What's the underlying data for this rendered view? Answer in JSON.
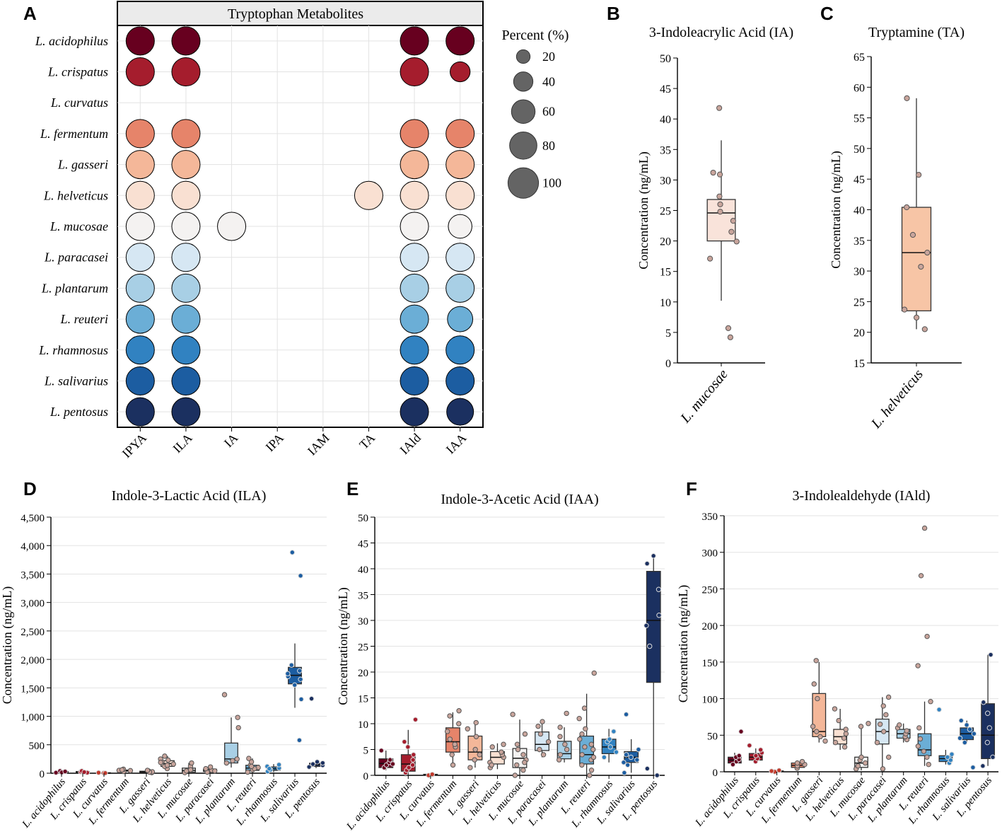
{
  "panel_labels": {
    "a": "A",
    "b": "B",
    "c": "C",
    "d": "D",
    "e": "E",
    "f": "F"
  },
  "chart_data": [
    {
      "panel": "A",
      "type": "scatter",
      "subtype": "bubble-matrix",
      "title": "Tryptophan Metabolites",
      "species": [
        "L. acidophilus",
        "L. crispatus",
        "L. curvatus",
        "L. fermentum",
        "L. gasseri",
        "L. helveticus",
        "L. mucosae",
        "L. paracasei",
        "L. plantarum",
        "L. reuteri",
        "L. rhamnosus",
        "L. salivarius",
        "L. pentosus"
      ],
      "metabolites": [
        "IPYA",
        "ILA",
        "IA",
        "IPA",
        "IAM",
        "TA",
        "IAld",
        "IAA"
      ],
      "species_colors": [
        "#67001f",
        "#a51d2d",
        "#c0392b",
        "#e6846a",
        "#f4b799",
        "#f9e0d2",
        "#f4f2f1",
        "#d6e7f3",
        "#a8cfe5",
        "#6baed6",
        "#3182c1",
        "#1c5da1",
        "#1b3060"
      ],
      "percent": [
        [
          100,
          100,
          null,
          null,
          null,
          null,
          100,
          100
        ],
        [
          100,
          100,
          null,
          null,
          null,
          null,
          100,
          50
        ],
        [
          null,
          null,
          null,
          null,
          null,
          null,
          null,
          null
        ],
        [
          100,
          100,
          null,
          null,
          null,
          null,
          100,
          100
        ],
        [
          100,
          100,
          null,
          null,
          null,
          null,
          100,
          100
        ],
        [
          100,
          100,
          null,
          null,
          null,
          100,
          100,
          100
        ],
        [
          100,
          100,
          100,
          null,
          null,
          null,
          100,
          70
        ],
        [
          100,
          100,
          null,
          null,
          null,
          null,
          100,
          100
        ],
        [
          100,
          100,
          null,
          null,
          null,
          null,
          100,
          100
        ],
        [
          100,
          100,
          null,
          null,
          null,
          null,
          100,
          80
        ],
        [
          100,
          100,
          null,
          null,
          null,
          null,
          100,
          100
        ],
        [
          100,
          100,
          null,
          null,
          null,
          null,
          100,
          100
        ],
        [
          100,
          100,
          null,
          null,
          null,
          null,
          100,
          90
        ]
      ],
      "legend": {
        "title": "Percent (%)",
        "values": [
          20,
          40,
          60,
          80,
          100
        ],
        "labels": [
          "20",
          "40",
          "60",
          "80",
          "100"
        ]
      }
    },
    {
      "panel": "B",
      "type": "box",
      "title": "3-Indoleacrylic Acid (IA)",
      "ylabel": "Concentration (ng/mL)",
      "ylim": [
        0,
        50
      ],
      "yticks": [
        0,
        5,
        10,
        15,
        20,
        25,
        30,
        35,
        40,
        45,
        50
      ],
      "ytick_labels": [
        "0",
        "5",
        "10",
        "15",
        "20",
        "25",
        "30",
        "35",
        "40",
        "45",
        "50"
      ],
      "categories": [
        "L. mucosae"
      ],
      "colors": [
        "#f9e3da"
      ],
      "boxes": [
        {
          "min": 10.2,
          "q1": 20.0,
          "median": 24.6,
          "q3": 26.8,
          "max": 36.5
        }
      ],
      "points": [
        [
          41.8,
          31.2,
          30.9,
          27.3,
          26.0,
          24.8,
          23.3,
          21.5,
          19.9,
          17.1,
          5.7,
          4.2
        ]
      ]
    },
    {
      "panel": "C",
      "type": "box",
      "title": "Tryptamine (TA)",
      "ylabel": "Concentration (ng/mL)",
      "ylim": [
        15,
        65
      ],
      "yticks": [
        15,
        20,
        25,
        30,
        35,
        40,
        45,
        50,
        55,
        60,
        65
      ],
      "ytick_labels": [
        "15",
        "20",
        "25",
        "30",
        "35",
        "40",
        "45",
        "50",
        "55",
        "60",
        "65"
      ],
      "categories": [
        "L. helveticus"
      ],
      "colors": [
        "#f7c5a6"
      ],
      "boxes": [
        {
          "min": 20.5,
          "q1": 23.5,
          "median": 33.0,
          "q3": 40.4,
          "max": 58.2
        }
      ],
      "points": [
        [
          58.2,
          45.7,
          40.4,
          35.9,
          33.0,
          30.7,
          23.7,
          22.4,
          20.5
        ]
      ]
    },
    {
      "panel": "D",
      "type": "box",
      "title": "Indole-3-Lactic Acid (ILA)",
      "ylabel": "Concentration (ng/mL)",
      "ylim": [
        0,
        4500
      ],
      "yticks": [
        0,
        500,
        1000,
        1500,
        2000,
        2500,
        3000,
        3500,
        4000,
        4500
      ],
      "ytick_labels": [
        "0",
        "500",
        "1,000",
        "1,500",
        "2,000",
        "2,500",
        "3,000",
        "3,500",
        "4,000",
        "4,500"
      ],
      "categories": [
        "L. acidophilus",
        "L. crispatus",
        "L. curvatus",
        "L. fermentum",
        "L. gasseri",
        "L. helveticus",
        "L. mucosae",
        "L. paracasei",
        "L. plantarum",
        "L. reuteri",
        "L. rhamnosus",
        "L. salivarius",
        "L. pentosus"
      ],
      "colors": [
        "#67001f",
        "#a51d2d",
        "#c0392b",
        "#e6846a",
        "#f4b799",
        "#f9e0d2",
        "#f4f2f1",
        "#d6e7f3",
        "#a8cfe5",
        "#6baed6",
        "#3182c1",
        "#1c5da1",
        "#1b3060"
      ],
      "boxes": [
        {
          "min": 5,
          "q1": 15,
          "median": 22,
          "q3": 30,
          "max": 40
        },
        {
          "min": 5,
          "q1": 15,
          "median": 22,
          "q3": 30,
          "max": 40
        },
        {
          "min": 0,
          "q1": 2,
          "median": 5,
          "q3": 8,
          "max": 12
        },
        {
          "min": 20,
          "q1": 35,
          "median": 45,
          "q3": 55,
          "max": 70
        },
        {
          "min": 5,
          "q1": 15,
          "median": 25,
          "q3": 35,
          "max": 50
        },
        {
          "min": 60,
          "q1": 120,
          "median": 170,
          "q3": 220,
          "max": 300
        },
        {
          "min": 0,
          "q1": 20,
          "median": 50,
          "q3": 90,
          "max": 180
        },
        {
          "min": 10,
          "q1": 30,
          "median": 50,
          "q3": 70,
          "max": 120
        },
        {
          "min": 100,
          "q1": 180,
          "median": 250,
          "q3": 530,
          "max": 980
        },
        {
          "min": 0,
          "q1": 50,
          "median": 90,
          "q3": 140,
          "max": 260
        },
        {
          "min": 20,
          "q1": 50,
          "median": 80,
          "q3": 110,
          "max": 160
        },
        {
          "min": 1150,
          "q1": 1570,
          "median": 1720,
          "q3": 1860,
          "max": 2280
        },
        {
          "min": 90,
          "q1": 120,
          "median": 150,
          "q3": 175,
          "max": 200
        }
      ],
      "points": [
        [
          10,
          25,
          40,
          15,
          30
        ],
        [
          10,
          25,
          40,
          20
        ],
        [
          0,
          5,
          10,
          3
        ],
        [
          30,
          50,
          70,
          45,
          60
        ],
        [
          10,
          25,
          40,
          20,
          50
        ],
        [
          80,
          120,
          160,
          200,
          250,
          300,
          140,
          190,
          230
        ],
        [
          10,
          40,
          80,
          120,
          180,
          60
        ],
        [
          20,
          50,
          80,
          110,
          40
        ],
        [
          180,
          220,
          250,
          800,
          980,
          1380
        ],
        [
          20,
          60,
          100,
          140,
          200,
          260,
          80,
          120
        ],
        [
          30,
          60,
          90,
          120,
          150,
          80
        ],
        [
          580,
          1300,
          1550,
          1650,
          1700,
          1750,
          1800,
          1900,
          3470,
          3880
        ],
        [
          110,
          140,
          160,
          180,
          200,
          1310
        ]
      ]
    },
    {
      "panel": "E",
      "type": "box",
      "title": "Indole-3-Acetic Acid (IAA)",
      "ylabel": "Concentration (ng/mL)",
      "ylim": [
        0,
        50
      ],
      "yticks": [
        0,
        5,
        10,
        15,
        20,
        25,
        30,
        35,
        40,
        45,
        50
      ],
      "ytick_labels": [
        "0",
        "5",
        "10",
        "15",
        "20",
        "25",
        "30",
        "35",
        "40",
        "45",
        "50"
      ],
      "categories": [
        "L. acidophilus",
        "L. crispatus",
        "L. curvatus",
        "L. fermentum",
        "L. gasseri",
        "L. helveticus",
        "L. mucosae",
        "L. paracasei",
        "L. plantarum",
        "L. reuteri",
        "L. rhamnosus",
        "L. salivarius",
        "L. pentosus"
      ],
      "colors": [
        "#67001f",
        "#a51d2d",
        "#c0392b",
        "#e6846a",
        "#f4b799",
        "#f9e0d2",
        "#f4f2f1",
        "#d6e7f3",
        "#a8cfe5",
        "#6baed6",
        "#3182c1",
        "#1c5da1",
        "#1b3060"
      ],
      "boxes": [
        {
          "min": 1,
          "q1": 1.5,
          "median": 2.3,
          "q3": 3.2,
          "max": 4.8
        },
        {
          "min": 0,
          "q1": 0.8,
          "median": 2.2,
          "q3": 4.0,
          "max": 8.8
        },
        {
          "min": 0,
          "q1": 0,
          "median": 0.1,
          "q3": 0.2,
          "max": 0.3
        },
        {
          "min": 2,
          "q1": 4.5,
          "median": 6.5,
          "q3": 9.2,
          "max": 12.2
        },
        {
          "min": 1.5,
          "q1": 3.0,
          "median": 4.5,
          "q3": 7.6,
          "max": 10.2
        },
        {
          "min": 1.2,
          "q1": 2.2,
          "median": 3.5,
          "q3": 4.6,
          "max": 6.2
        },
        {
          "min": 0,
          "q1": 1.5,
          "median": 3.3,
          "q3": 5.2,
          "max": 10.8
        },
        {
          "min": 3.5,
          "q1": 4.8,
          "median": 6.0,
          "q3": 8.4,
          "max": 10.4
        },
        {
          "min": 2.5,
          "q1": 3.2,
          "median": 4.2,
          "q3": 6.6,
          "max": 9.3
        },
        {
          "min": 0,
          "q1": 2.2,
          "median": 4.0,
          "q3": 7.6,
          "max": 15.8
        },
        {
          "min": 2.5,
          "q1": 4.2,
          "median": 5.5,
          "q3": 7.0,
          "max": 9.0
        },
        {
          "min": 0.5,
          "q1": 2.5,
          "median": 3.5,
          "q3": 4.6,
          "max": 7.0
        },
        {
          "min": 0,
          "q1": 18.0,
          "median": 30.0,
          "q3": 39.5,
          "max": 42.2
        }
      ],
      "points": [
        [
          1.5,
          2.0,
          2.5,
          3.0,
          4.8,
          2.2
        ],
        [
          0.5,
          1.0,
          2.0,
          3.0,
          4.0,
          5.5,
          6.5,
          10.8,
          1.5
        ],
        [
          0,
          0.1,
          0.2
        ],
        [
          2.0,
          4.0,
          5.5,
          7.0,
          8.5,
          10.0,
          11.5,
          12.5,
          6.0
        ],
        [
          1.5,
          3.0,
          4.0,
          5.0,
          7.5,
          9.0,
          10.2
        ],
        [
          1.5,
          2.5,
          3.5,
          4.0,
          4.5,
          5.5,
          6.0,
          2.0
        ],
        [
          0,
          1.0,
          2.0,
          3.0,
          4.0,
          5.0,
          6.0,
          8.0,
          11.8,
          2.5
        ],
        [
          4.0,
          5.0,
          6.5,
          8.0,
          9.5,
          10.4
        ],
        [
          3.0,
          4.0,
          5.0,
          6.0,
          7.5,
          9.3,
          12.0
        ],
        [
          0,
          1.0,
          2.0,
          3.0,
          4.0,
          5.0,
          6.0,
          7.0,
          8.0,
          9.0,
          11.0,
          13.0,
          19.8,
          3.5,
          5.5
        ],
        [
          3.5,
          4.5,
          5.5,
          6.5,
          7.0,
          8.5
        ],
        [
          0.5,
          2.0,
          3.0,
          3.5,
          4.0,
          5.0,
          11.8,
          2.5
        ],
        [
          0,
          1.3,
          25.0,
          29.0,
          31.0,
          36.0,
          41.0,
          42.5
        ]
      ]
    },
    {
      "panel": "F",
      "type": "box",
      "title": "3-Indolealdehyde (IAld)",
      "ylabel": "Concentration (ng/mL)",
      "ylim": [
        0,
        350
      ],
      "yticks": [
        0,
        50,
        100,
        150,
        200,
        250,
        300,
        350
      ],
      "ytick_labels": [
        "0",
        "50",
        "100",
        "150",
        "200",
        "250",
        "300",
        "350"
      ],
      "categories": [
        "L. acidophilus",
        "L. crispatus",
        "L. curvatus",
        "L. fermentum",
        "L. gasseri",
        "L. helveticus",
        "L. mucosae",
        "L. paracasei",
        "L. plantarum",
        "L. reuteri",
        "L. rhamnosus",
        "L. salivarius",
        "L. pentosus"
      ],
      "colors": [
        "#67001f",
        "#a51d2d",
        "#c0392b",
        "#e6846a",
        "#f4b799",
        "#f9e0d2",
        "#f4f2f1",
        "#d6e7f3",
        "#a8cfe5",
        "#6baed6",
        "#3182c1",
        "#1c5da1",
        "#1b3060"
      ],
      "boxes": [
        {
          "min": 8,
          "q1": 12,
          "median": 16,
          "q3": 20,
          "max": 26
        },
        {
          "min": 12,
          "q1": 16,
          "median": 20,
          "q3": 25,
          "max": 32
        },
        {
          "min": 0,
          "q1": 0,
          "median": 1,
          "q3": 1,
          "max": 2
        },
        {
          "min": 3,
          "q1": 6,
          "median": 9,
          "q3": 12,
          "max": 15
        },
        {
          "min": 40,
          "q1": 48,
          "median": 55,
          "q3": 107,
          "max": 150
        },
        {
          "min": 30,
          "q1": 38,
          "median": 48,
          "q3": 58,
          "max": 86
        },
        {
          "min": 2,
          "q1": 6,
          "median": 12,
          "q3": 20,
          "max": 65
        },
        {
          "min": 3,
          "q1": 38,
          "median": 55,
          "q3": 72,
          "max": 102
        },
        {
          "min": 40,
          "q1": 46,
          "median": 52,
          "q3": 58,
          "max": 66
        },
        {
          "min": 8,
          "q1": 22,
          "median": 30,
          "q3": 52,
          "max": 96
        },
        {
          "min": 10,
          "q1": 14,
          "median": 18,
          "q3": 22,
          "max": 30
        },
        {
          "min": 40,
          "q1": 44,
          "median": 52,
          "q3": 60,
          "max": 70
        },
        {
          "min": 8,
          "q1": 18,
          "median": 50,
          "q3": 93,
          "max": 160
        }
      ],
      "points": [
        [
          10,
          14,
          17,
          20,
          22,
          55
        ],
        [
          14,
          18,
          22,
          26,
          30,
          36
        ],
        [
          0,
          1,
          2
        ],
        [
          5,
          8,
          10,
          12,
          14
        ],
        [
          42,
          48,
          55,
          62,
          100,
          120,
          152
        ],
        [
          34,
          40,
          46,
          52,
          58,
          70,
          86
        ],
        [
          4,
          8,
          12,
          16,
          20,
          62,
          66
        ],
        [
          4,
          20,
          40,
          55,
          65,
          78,
          90,
          102
        ],
        [
          44,
          48,
          52,
          56,
          60,
          64
        ],
        [
          10,
          20,
          28,
          35,
          45,
          60,
          96,
          145,
          185,
          268,
          333
        ],
        [
          12,
          16,
          20,
          24,
          85
        ],
        [
          6,
          40,
          46,
          52,
          58,
          64,
          70
        ],
        [
          8,
          20,
          40,
          60,
          80,
          95,
          160
        ]
      ]
    }
  ]
}
